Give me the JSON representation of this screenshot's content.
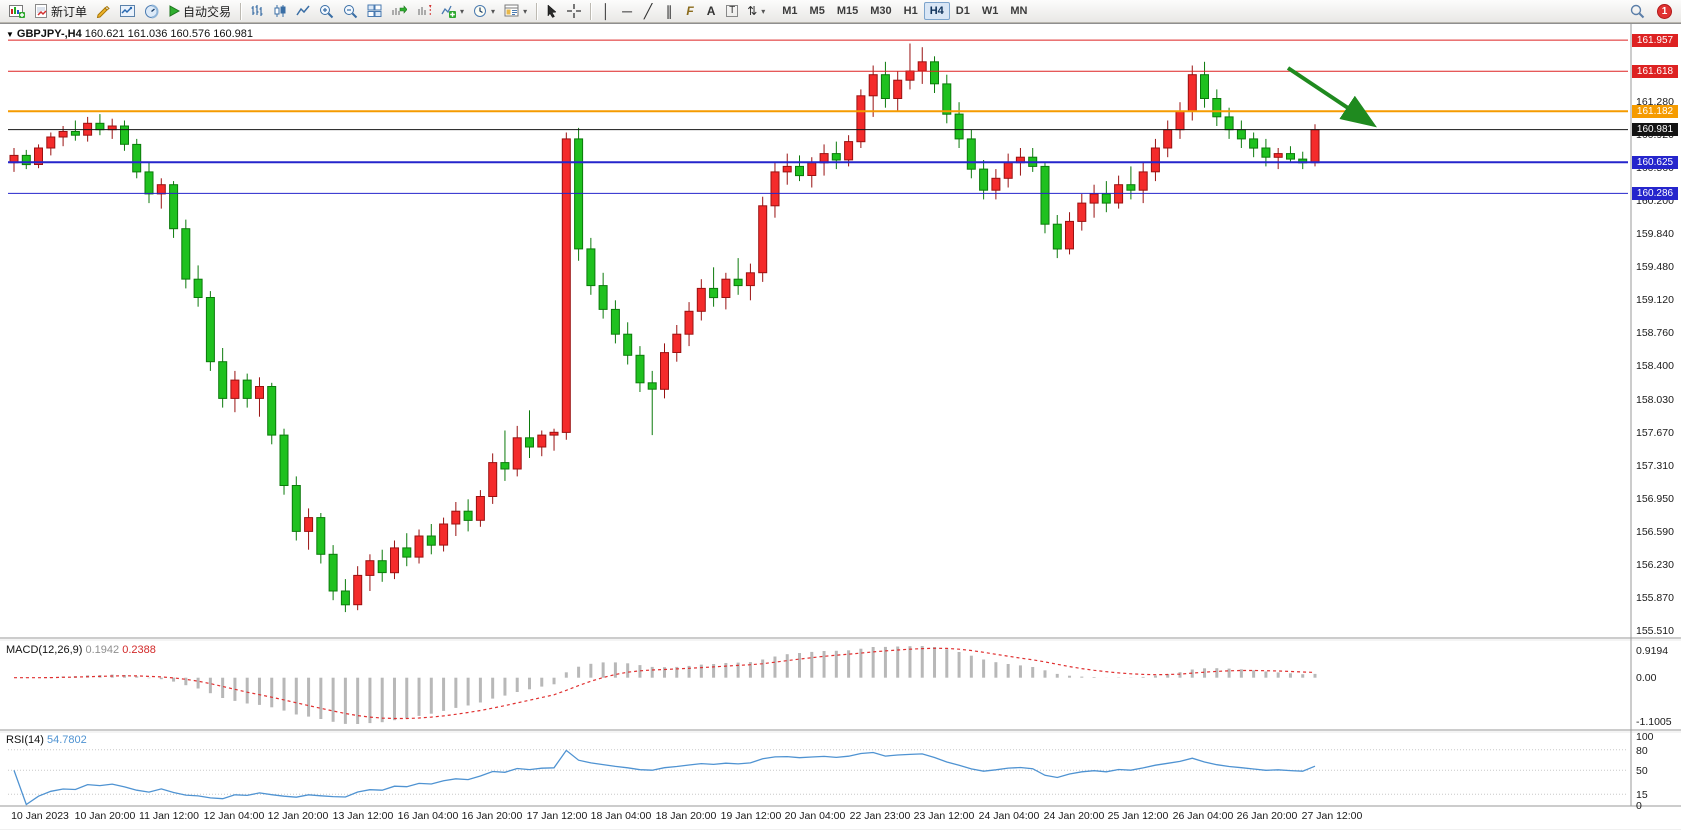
{
  "toolbar": {
    "new_order_label": "新订单",
    "autotrading_label": "自动交易",
    "timeframes": [
      "M1",
      "M5",
      "M15",
      "M30",
      "H1",
      "H4",
      "D1",
      "W1",
      "MN"
    ],
    "active_timeframe": "H4",
    "notification_count": "1",
    "glyphs": {
      "dropdown": "▾",
      "vline": "│",
      "hline": "─",
      "trendline": "╱",
      "channel": "∥",
      "fibonacci": "F",
      "text": "A",
      "label": "T",
      "arrows": "⇅"
    }
  },
  "chart": {
    "collapse_arrow": "▼",
    "title_symbol": "GBPJPY-,H4",
    "title_ohlc": "160.621 161.036 160.576 160.981",
    "price_axis_ticks": [
      "161.280",
      "160.920",
      "160.560",
      "160.200",
      "159.840",
      "159.480",
      "159.120",
      "158.760",
      "158.400",
      "158.030",
      "157.670",
      "157.310",
      "156.950",
      "156.590",
      "156.230",
      "155.870",
      "155.510"
    ],
    "time_axis_labels": [
      "10 Jan 2023",
      "10 Jan 20:00",
      "11 Jan 12:00",
      "12 Jan 04:00",
      "12 Jan 20:00",
      "13 Jan 12:00",
      "16 Jan 04:00",
      "16 Jan 20:00",
      "17 Jan 12:00",
      "18 Jan 04:00",
      "18 Jan 20:00",
      "19 Jan 12:00",
      "20 Jan 04:00",
      "22 Jan 23:00",
      "23 Jan 12:00",
      "24 Jan 04:00",
      "24 Jan 20:00",
      "25 Jan 12:00",
      "26 Jan 04:00",
      "26 Jan 20:00",
      "27 Jan 12:00"
    ]
  },
  "macd": {
    "label": "MACD(12,26,9)",
    "value_main": "0.1942",
    "value_signal": "0.2388",
    "axis": [
      "0.9194",
      "0.00",
      "-1.1005"
    ]
  },
  "rsi": {
    "label": "RSI(14)",
    "value": "54.7802",
    "axis": [
      "100",
      "80",
      "50",
      "15",
      "0"
    ]
  },
  "chart_data": {
    "type": "candlestick",
    "symbol": "GBPJPY-",
    "timeframe": "H4",
    "current_bar": {
      "open": 160.621,
      "high": 161.036,
      "low": 160.576,
      "close": 160.981
    },
    "y_range": [
      155.47,
      162.1
    ],
    "colors": {
      "up": "#f42b2b",
      "up_stroke": "#991111",
      "down": "#1fc11f",
      "down_stroke": "#0b7a0b",
      "macd_hist": "#b8b8b8",
      "macd_signal": "#e03030",
      "rsi_line": "#4f93d2",
      "level_red": "#dd2222",
      "level_orange": "#f59b00",
      "level_blue": "#2525cc",
      "level_black": "#141414",
      "annotation_green": "#1f8a1f"
    },
    "levels": [
      {
        "label": "161.957",
        "price": 161.957,
        "color": "#dd2222",
        "width": 1
      },
      {
        "label": "161.618",
        "price": 161.618,
        "color": "#dd2222",
        "width": 1
      },
      {
        "label": "161.182",
        "price": 161.182,
        "color": "#f59b00",
        "width": 2
      },
      {
        "label": "160.981",
        "price": 160.981,
        "color": "#141414",
        "width": 1
      },
      {
        "label": "160.625",
        "price": 160.625,
        "color": "#2525cc",
        "width": 2
      },
      {
        "label": "160.286",
        "price": 160.286,
        "color": "#2525cc",
        "width": 1
      }
    ],
    "annotation_arrow": {
      "direction": "down-right",
      "color": "#1f8a1f",
      "from": [
        1288,
        44
      ],
      "to": [
        1372,
        100
      ]
    },
    "indicators": {
      "macd_params": [
        12,
        26,
        9
      ],
      "rsi_params": [
        14
      ]
    },
    "candles": [
      [
        160.62,
        160.78,
        160.52,
        160.7
      ],
      [
        160.7,
        160.76,
        160.55,
        160.6
      ],
      [
        160.6,
        160.82,
        160.56,
        160.78
      ],
      [
        160.78,
        160.95,
        160.7,
        160.9
      ],
      [
        160.9,
        161.02,
        160.8,
        160.96
      ],
      [
        160.96,
        161.08,
        160.86,
        160.92
      ],
      [
        160.92,
        161.12,
        160.85,
        161.05
      ],
      [
        161.05,
        161.15,
        160.92,
        160.98
      ],
      [
        160.98,
        161.1,
        160.88,
        161.02
      ],
      [
        161.02,
        161.08,
        160.75,
        160.82
      ],
      [
        160.82,
        160.88,
        160.45,
        160.52
      ],
      [
        160.52,
        160.62,
        160.18,
        160.28
      ],
      [
        160.28,
        160.45,
        160.12,
        160.38
      ],
      [
        160.38,
        160.42,
        159.8,
        159.9
      ],
      [
        159.9,
        160.0,
        159.25,
        159.35
      ],
      [
        159.35,
        159.5,
        159.05,
        159.15
      ],
      [
        159.15,
        159.22,
        158.35,
        158.45
      ],
      [
        158.45,
        158.6,
        157.95,
        158.05
      ],
      [
        158.05,
        158.35,
        157.9,
        158.25
      ],
      [
        158.25,
        158.32,
        157.95,
        158.05
      ],
      [
        158.05,
        158.28,
        157.85,
        158.18
      ],
      [
        158.18,
        158.22,
        157.55,
        157.65
      ],
      [
        157.65,
        157.72,
        157.0,
        157.1
      ],
      [
        157.1,
        157.2,
        156.5,
        156.6
      ],
      [
        156.6,
        156.85,
        156.4,
        156.75
      ],
      [
        156.75,
        156.8,
        156.25,
        156.35
      ],
      [
        156.35,
        156.45,
        155.85,
        155.95
      ],
      [
        155.95,
        156.08,
        155.72,
        155.8
      ],
      [
        155.8,
        156.22,
        155.74,
        156.12
      ],
      [
        156.12,
        156.35,
        155.95,
        156.28
      ],
      [
        156.28,
        156.4,
        156.05,
        156.15
      ],
      [
        156.15,
        156.5,
        156.08,
        156.42
      ],
      [
        156.42,
        156.58,
        156.22,
        156.32
      ],
      [
        156.32,
        156.62,
        156.25,
        156.55
      ],
      [
        156.55,
        156.68,
        156.35,
        156.45
      ],
      [
        156.45,
        156.75,
        156.38,
        156.68
      ],
      [
        156.68,
        156.92,
        156.55,
        156.82
      ],
      [
        156.82,
        156.95,
        156.6,
        156.72
      ],
      [
        156.72,
        157.05,
        156.65,
        156.98
      ],
      [
        156.98,
        157.45,
        156.9,
        157.35
      ],
      [
        157.35,
        157.7,
        157.15,
        157.28
      ],
      [
        157.28,
        157.75,
        157.2,
        157.62
      ],
      [
        157.62,
        157.92,
        157.4,
        157.52
      ],
      [
        157.52,
        157.7,
        157.42,
        157.65
      ],
      [
        157.65,
        157.72,
        157.48,
        157.68
      ],
      [
        157.68,
        160.95,
        157.6,
        160.88
      ],
      [
        160.88,
        161.0,
        159.55,
        159.68
      ],
      [
        159.68,
        159.8,
        159.18,
        159.28
      ],
      [
        159.28,
        159.42,
        158.92,
        159.02
      ],
      [
        159.02,
        159.12,
        158.65,
        158.75
      ],
      [
        158.75,
        158.88,
        158.42,
        158.52
      ],
      [
        158.52,
        158.62,
        158.12,
        158.22
      ],
      [
        158.22,
        158.35,
        157.65,
        158.15
      ],
      [
        158.15,
        158.65,
        158.05,
        158.55
      ],
      [
        158.55,
        158.85,
        158.45,
        158.75
      ],
      [
        158.75,
        159.1,
        158.62,
        159.0
      ],
      [
        159.0,
        159.35,
        158.9,
        159.25
      ],
      [
        159.25,
        159.48,
        159.05,
        159.15
      ],
      [
        159.15,
        159.42,
        159.02,
        159.35
      ],
      [
        159.35,
        159.58,
        159.18,
        159.28
      ],
      [
        159.28,
        159.52,
        159.12,
        159.42
      ],
      [
        159.42,
        160.25,
        159.32,
        160.15
      ],
      [
        160.15,
        160.62,
        160.02,
        160.52
      ],
      [
        160.52,
        160.72,
        160.38,
        160.58
      ],
      [
        160.58,
        160.7,
        160.42,
        160.48
      ],
      [
        160.48,
        160.68,
        160.35,
        160.62
      ],
      [
        160.62,
        160.82,
        160.48,
        160.72
      ],
      [
        160.72,
        160.85,
        160.55,
        160.65
      ],
      [
        160.65,
        160.92,
        160.58,
        160.85
      ],
      [
        160.85,
        161.42,
        160.78,
        161.35
      ],
      [
        161.35,
        161.68,
        161.12,
        161.58
      ],
      [
        161.58,
        161.72,
        161.22,
        161.32
      ],
      [
        161.32,
        161.62,
        161.18,
        161.52
      ],
      [
        161.52,
        161.92,
        161.42,
        161.62
      ],
      [
        161.62,
        161.88,
        161.48,
        161.72
      ],
      [
        161.72,
        161.78,
        161.38,
        161.48
      ],
      [
        161.48,
        161.58,
        161.05,
        161.15
      ],
      [
        161.15,
        161.28,
        160.78,
        160.88
      ],
      [
        160.88,
        160.98,
        160.45,
        160.55
      ],
      [
        160.55,
        160.65,
        160.22,
        160.32
      ],
      [
        160.32,
        160.55,
        160.22,
        160.45
      ],
      [
        160.45,
        160.72,
        160.35,
        160.62
      ],
      [
        160.62,
        160.78,
        160.48,
        160.68
      ],
      [
        160.68,
        160.78,
        160.52,
        160.58
      ],
      [
        160.58,
        160.62,
        159.85,
        159.95
      ],
      [
        159.95,
        160.05,
        159.58,
        159.68
      ],
      [
        159.68,
        160.08,
        159.62,
        159.98
      ],
      [
        159.98,
        160.28,
        159.88,
        160.18
      ],
      [
        160.18,
        160.38,
        160.02,
        160.28
      ],
      [
        160.28,
        160.42,
        160.08,
        160.18
      ],
      [
        160.18,
        160.48,
        160.12,
        160.38
      ],
      [
        160.38,
        160.58,
        160.22,
        160.32
      ],
      [
        160.32,
        160.62,
        160.18,
        160.52
      ],
      [
        160.52,
        160.88,
        160.42,
        160.78
      ],
      [
        160.78,
        161.08,
        160.68,
        160.98
      ],
      [
        160.98,
        161.28,
        160.88,
        161.18
      ],
      [
        161.18,
        161.68,
        161.08,
        161.58
      ],
      [
        161.58,
        161.72,
        161.22,
        161.32
      ],
      [
        161.32,
        161.42,
        161.02,
        161.12
      ],
      [
        161.12,
        161.22,
        160.88,
        160.98
      ],
      [
        160.98,
        161.08,
        160.78,
        160.88
      ],
      [
        160.88,
        160.95,
        160.68,
        160.78
      ],
      [
        160.78,
        160.88,
        160.58,
        160.68
      ],
      [
        160.68,
        160.78,
        160.55,
        160.72
      ],
      [
        160.72,
        160.8,
        160.62,
        160.66
      ],
      [
        160.66,
        160.74,
        160.55,
        160.62
      ],
      [
        160.62,
        161.04,
        160.58,
        160.98
      ]
    ]
  }
}
